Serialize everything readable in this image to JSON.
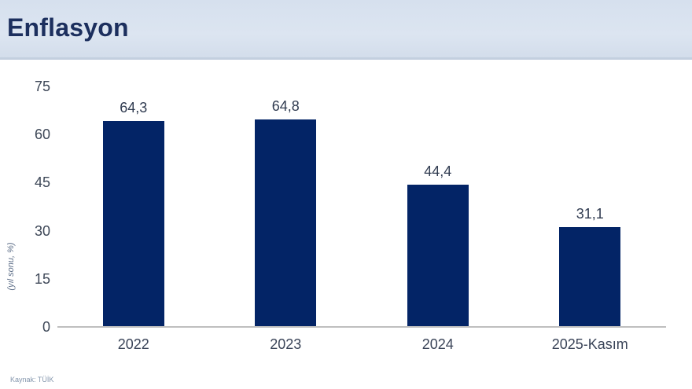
{
  "header": {
    "title": "Enflasyon"
  },
  "footer": {
    "source": "Kaynak: TÜİK"
  },
  "chart_data": {
    "type": "bar",
    "title": "Enflasyon",
    "categories": [
      "2022",
      "2023",
      "2024",
      "2025-Kasım"
    ],
    "values": [
      64.3,
      64.8,
      44.4,
      31.1
    ],
    "value_labels": [
      "64,3",
      "64,8",
      "44,4",
      "31,1"
    ],
    "ylabel": "(yıl sonu, %)",
    "xlabel": "",
    "yticks": [
      0,
      15,
      30,
      45,
      60,
      75
    ],
    "ylim": [
      0,
      75
    ],
    "grid": false,
    "legend": "none",
    "bar_color": "#032466"
  },
  "colors": {
    "bar": "#032466",
    "header_background": "#dbe4f0",
    "title_text": "#1c2f5e",
    "axis_line": "#bfbfbf",
    "tick_text": "#3d4757"
  }
}
